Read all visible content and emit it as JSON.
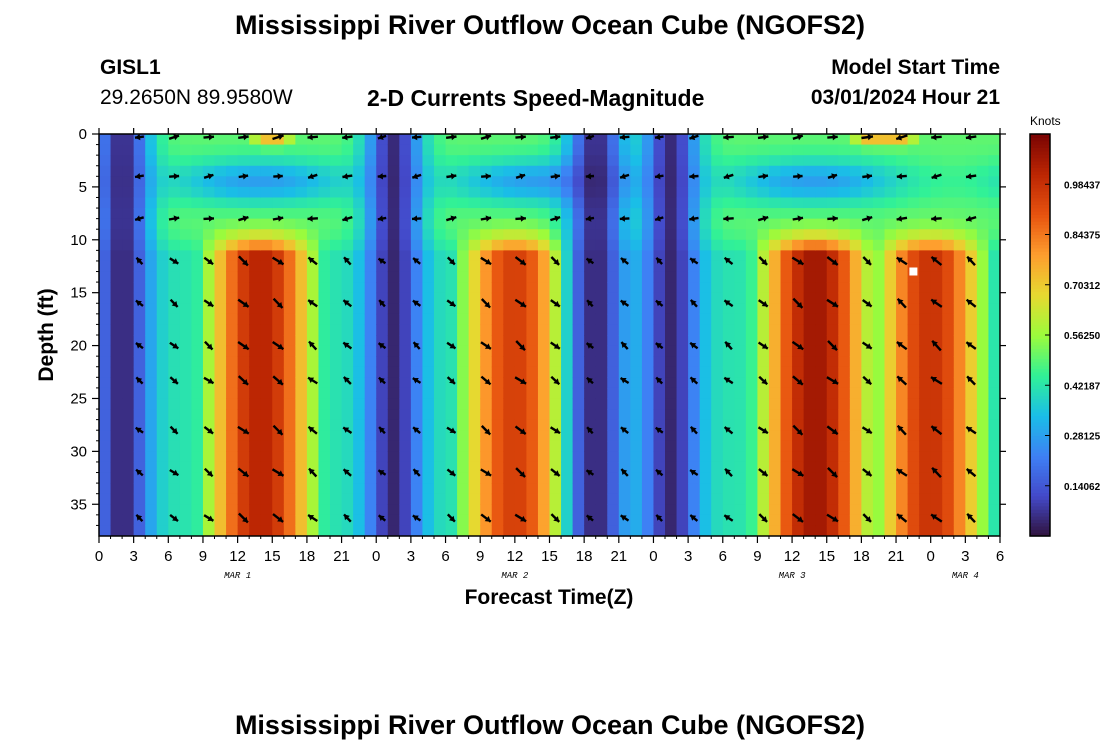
{
  "header": {
    "title": "Mississippi River Outflow Ocean Cube (NGOFS2)",
    "station_id": "GISL1",
    "coordinates": "29.2650N  89.9580W",
    "subtitle": "2-D Currents Speed-Magnitude",
    "start_label": "Model Start Time",
    "start_value": "03/01/2024 Hour 21"
  },
  "footer": {
    "title": "Mississippi River Outflow Ocean Cube (NGOFS2)"
  },
  "chart_data": {
    "type": "heatmap",
    "title": "2-D Currents Speed-Magnitude",
    "xlabel": "Forecast Time(Z)",
    "ylabel": "Depth (ft)",
    "colorbar_label": "Knots",
    "x_range_hours": [
      0,
      78
    ],
    "ylim": [
      0,
      38
    ],
    "x_tick_hours": [
      0,
      3,
      6,
      9,
      12,
      15,
      18,
      21,
      24,
      27,
      30,
      33,
      36,
      39,
      42,
      45,
      48,
      51,
      54,
      57,
      60,
      63,
      66,
      69,
      72,
      75,
      78
    ],
    "x_tick_labels": [
      "0",
      "3",
      "6",
      "9",
      "12",
      "15",
      "18",
      "21",
      "0",
      "3",
      "6",
      "9",
      "12",
      "15",
      "18",
      "21",
      "0",
      "3",
      "6",
      "9",
      "12",
      "15",
      "18",
      "21",
      "0",
      "3",
      "6"
    ],
    "date_labels": [
      {
        "hour": 12,
        "label": "MAR 1"
      },
      {
        "hour": 36,
        "label": "MAR 2"
      },
      {
        "hour": 60,
        "label": "MAR 3"
      },
      {
        "hour": 75,
        "label": "MAR 4"
      }
    ],
    "y_ticks": [
      0,
      5,
      10,
      15,
      20,
      25,
      30,
      35
    ],
    "colorbar_ticks": [
      0.140625,
      0.28125,
      0.421875,
      0.5625,
      0.703125,
      0.84375,
      0.984375
    ],
    "colorbar_tick_labels": [
      "0.14062",
      "0.28125",
      "0.42187",
      "0.56250",
      "0.70312",
      "0.84375",
      "0.98437"
    ],
    "color_range": [
      0,
      1.125
    ],
    "speed_peaks": [
      {
        "hour": 14,
        "speed": 1.02
      },
      {
        "hour": 36,
        "speed": 0.95
      },
      {
        "hour": 62,
        "speed": 1.06
      },
      {
        "hour": 72,
        "speed": 0.98
      }
    ],
    "slack_hours": [
      2,
      25.5,
      43,
      49.5
    ],
    "surface_hours": [
      15,
      67,
      69
    ],
    "upper_layer_speed": 0.5,
    "marker": {
      "hour": 70.5,
      "depth": 13
    }
  }
}
